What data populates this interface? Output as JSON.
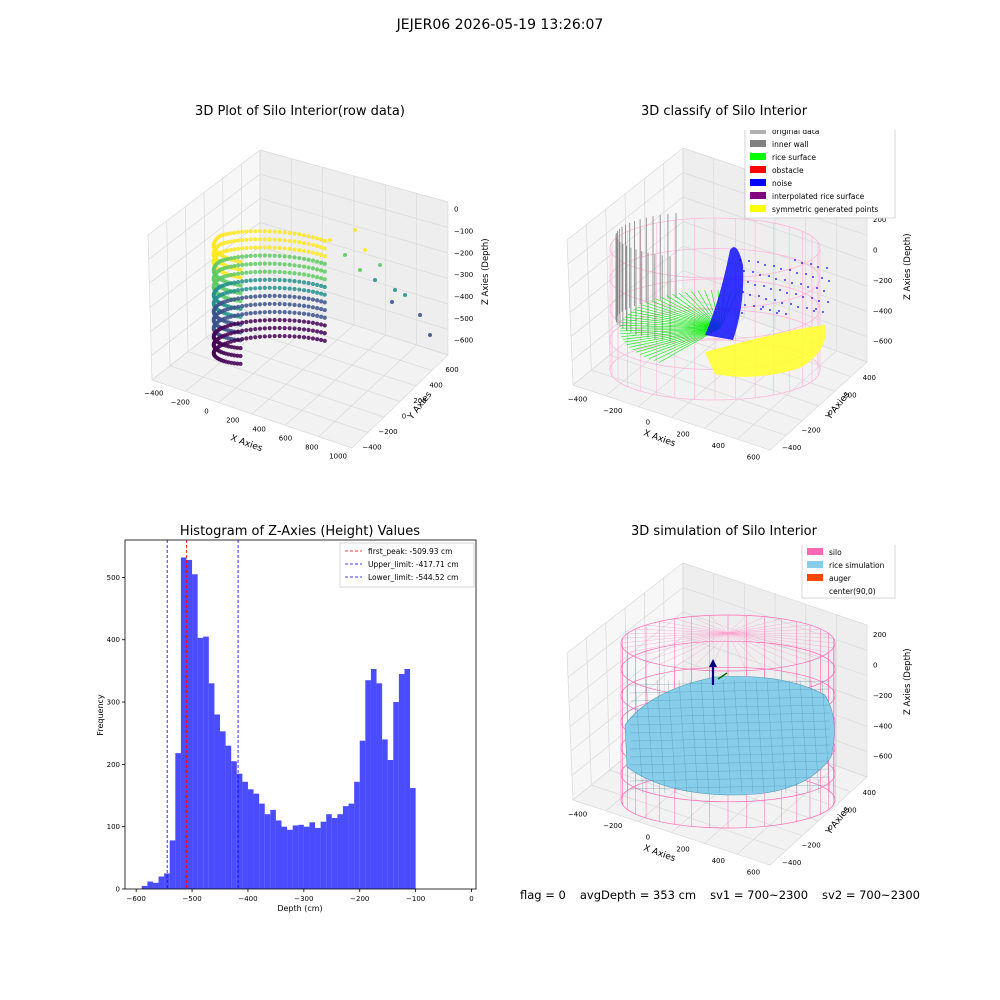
{
  "suptitle": "JEJER06 2026-05-19 13:26:07",
  "footer": {
    "flag": "flag = 0",
    "avg_depth": "avgDepth = 353 cm",
    "sv1": "sv1 = 700~2300",
    "sv2": "sv2 = 700~2300"
  },
  "colors": {
    "viridis_low": "#440154",
    "viridis_mid": "#21918c",
    "viridis_high": "#fde725",
    "pane": "#f2f2f2",
    "grid": "#d9d9d9",
    "silo_pink": "#ff69b4",
    "rice_blue": "#87ceeb",
    "auger": "#ff4500",
    "hist_blue": "#0000ff"
  },
  "panel1": {
    "title": "3D Plot of Silo Interior(row data)",
    "x_label": "X Axies",
    "y_label": "Y Axies",
    "z_label": "Z Axies (Depth)",
    "x_ticks": [
      "−400",
      "−200",
      "0",
      "200",
      "400",
      "600",
      "800",
      "1000"
    ],
    "y_ticks": [
      "−400",
      "−200",
      "0",
      "200",
      "400",
      "600"
    ],
    "z_ticks": [
      "0",
      "−100",
      "−200",
      "−300",
      "−400",
      "−500",
      "−600"
    ]
  },
  "panel2": {
    "title": "3D classify of Silo Interior",
    "x_label": "X Axies",
    "y_label": "Y Axies",
    "z_label": "Z Axies (Depth)",
    "x_ticks": [
      "−400",
      "−200",
      "0",
      "200",
      "400",
      "600"
    ],
    "y_ticks": [
      "−400",
      "−200",
      "0",
      "200",
      "400"
    ],
    "z_ticks": [
      "200",
      "0",
      "−200",
      "−400",
      "−600"
    ],
    "legend": [
      {
        "label": "original data",
        "color": "#b0b0b0"
      },
      {
        "label": "inner wall",
        "color": "#808080"
      },
      {
        "label": "rice surface",
        "color": "#00ff00"
      },
      {
        "label": "obstacle",
        "color": "#ff0000"
      },
      {
        "label": "noise",
        "color": "#0000ff"
      },
      {
        "label": "interpolated rice surface",
        "color": "#800080"
      },
      {
        "label": "symmetric generated points",
        "color": "#ffff00"
      }
    ]
  },
  "panel3": {
    "title": "Histogram of Z-Axies (Height) Values",
    "x_label": "Depth (cm)",
    "y_label": "Frequency",
    "x_ticks": [
      "−600",
      "−500",
      "−400",
      "−300",
      "−200",
      "−100",
      "0"
    ],
    "y_ticks": [
      "0",
      "100",
      "200",
      "300",
      "400",
      "500"
    ],
    "legend": [
      {
        "label": "first_peak: -509.93 cm",
        "color": "#ff0000"
      },
      {
        "label": "Upper_limit: -417.71 cm",
        "color": "#0000ff"
      },
      {
        "label": "Lower_limit: -544.52 cm",
        "color": "#0000ff"
      }
    ]
  },
  "panel4": {
    "title": "3D simulation of Silo Interior",
    "x_label": "X Axies",
    "y_label": "Y Axies",
    "z_label": "Z Axies (Depth)",
    "x_ticks": [
      "−400",
      "−200",
      "0",
      "200",
      "400",
      "600"
    ],
    "y_ticks": [
      "−400",
      "−200",
      "0",
      "200",
      "400"
    ],
    "z_ticks": [
      "200",
      "0",
      "−200",
      "−400",
      "−600"
    ],
    "legend": [
      {
        "label": "silo",
        "color": "#ff69b4"
      },
      {
        "label": "rice simulation",
        "color": "#87ceeb"
      },
      {
        "label": "auger",
        "color": "#ff4500"
      },
      {
        "label": "center(90,0)",
        "color": ""
      }
    ]
  },
  "chart_data": [
    {
      "type": "scatter",
      "title": "3D Plot of Silo Interior(row data)",
      "xlabel": "X Axies",
      "ylabel": "Y Axies",
      "zlabel": "Z Axies (Depth)",
      "xlim": [
        -450,
        1100
      ],
      "ylim": [
        -450,
        650
      ],
      "zlim": [
        -650,
        0
      ],
      "grid": true
    },
    {
      "type": "scatter",
      "title": "3D classify of Silo Interior",
      "xlabel": "X Axies",
      "ylabel": "Y Axies",
      "zlabel": "Z Axies (Depth)",
      "xlim": [
        -450,
        650
      ],
      "ylim": [
        -450,
        450
      ],
      "zlim": [
        -700,
        250
      ],
      "legend_position": "top-right",
      "grid": true
    },
    {
      "type": "bar",
      "title": "Histogram of Z-Axies (Height) Values",
      "xlabel": "Depth (cm)",
      "ylabel": "Frequency",
      "xlim": [
        -620,
        8
      ],
      "ylim": [
        0,
        560
      ],
      "bin_width": 10,
      "bin_start": -590,
      "values": [
        5,
        12,
        10,
        20,
        25,
        78,
        218,
        532,
        528,
        505,
        403,
        405,
        330,
        280,
        253,
        230,
        205,
        185,
        172,
        160,
        153,
        137,
        120,
        127,
        110,
        100,
        95,
        102,
        103,
        100,
        107,
        98,
        108,
        120,
        114,
        120,
        133,
        137,
        172,
        238,
        335,
        353,
        330,
        240,
        207,
        300,
        345,
        353,
        162
      ],
      "vlines": [
        {
          "label": "first_peak: -509.93 cm",
          "x": -509.93,
          "color": "#ff0000"
        },
        {
          "label": "Upper_limit: -417.71 cm",
          "x": -417.71,
          "color": "#0000ff"
        },
        {
          "label": "Lower_limit: -544.52 cm",
          "x": -544.52,
          "color": "#0000ff"
        }
      ],
      "legend_position": "top-right"
    },
    {
      "type": "area",
      "title": "3D simulation of Silo Interior",
      "xlabel": "X Axies",
      "ylabel": "Y Axies",
      "zlabel": "Z Axies (Depth)",
      "xlim": [
        -450,
        650
      ],
      "ylim": [
        -450,
        450
      ],
      "zlim": [
        -700,
        250
      ],
      "legend_position": "top-right",
      "grid": true
    }
  ]
}
